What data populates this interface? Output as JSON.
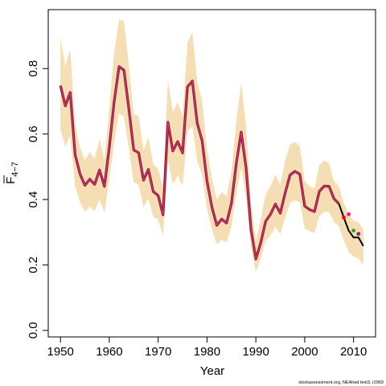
{
  "chart_data": {
    "type": "line",
    "xlabel": "Year",
    "ylabel_main": "F",
    "ylabel_sub": "4−7",
    "xlim": [
      1947.5,
      2014.5
    ],
    "ylim": [
      -0.02,
      0.98
    ],
    "x_ticks": [
      1950,
      1960,
      1970,
      1980,
      1990,
      2000,
      2010
    ],
    "y_ticks": [
      0.0,
      0.2,
      0.4,
      0.6,
      0.8
    ],
    "x_tick_labels": [
      "1950",
      "1960",
      "1970",
      "1980",
      "1990",
      "2000",
      "2010"
    ],
    "y_tick_labels": [
      "0.0",
      "0.2",
      "0.4",
      "0.6",
      "0.8"
    ],
    "grid": false,
    "footnote": "stockassessment.org, NEAhad test3, r2969",
    "colors": {
      "band": "#f5deb3",
      "main_line": "#8b1a3a",
      "main_line_inner": "#e8407a",
      "forecast_line": "#000000",
      "retro_points": [
        "#ff0000",
        "#ff1493",
        "#2ca02c",
        "#7b2a8a"
      ]
    },
    "series": [
      {
        "role": "estimate",
        "x": [
          1950,
          1951,
          1952,
          1953,
          1954,
          1955,
          1956,
          1957,
          1958,
          1959,
          1960,
          1961,
          1962,
          1963,
          1964,
          1965,
          1966,
          1967,
          1968,
          1969,
          1970,
          1971,
          1972,
          1973,
          1974,
          1975,
          1976,
          1977,
          1978,
          1979,
          1980,
          1981,
          1982,
          1983,
          1984,
          1985,
          1986,
          1987,
          1988,
          1989,
          1990,
          1991,
          1992,
          1993,
          1994,
          1995,
          1996,
          1997,
          1998,
          1999,
          2000,
          2001,
          2002,
          2003,
          2004,
          2005,
          2006,
          2007
        ],
        "y": [
          0.748,
          0.686,
          0.727,
          0.537,
          0.478,
          0.443,
          0.462,
          0.446,
          0.49,
          0.44,
          0.56,
          0.7,
          0.806,
          0.795,
          0.677,
          0.551,
          0.543,
          0.459,
          0.492,
          0.424,
          0.412,
          0.353,
          0.636,
          0.548,
          0.577,
          0.542,
          0.744,
          0.762,
          0.633,
          0.579,
          0.456,
          0.377,
          0.321,
          0.34,
          0.328,
          0.388,
          0.511,
          0.606,
          0.496,
          0.31,
          0.218,
          0.268,
          0.333,
          0.355,
          0.386,
          0.358,
          0.42,
          0.475,
          0.486,
          0.477,
          0.38,
          0.369,
          0.363,
          0.425,
          0.441,
          0.44,
          0.402,
          0.387
        ]
      },
      {
        "role": "forecast",
        "x": [
          2007,
          2008,
          2009,
          2010,
          2011,
          2012
        ],
        "y": [
          0.387,
          0.345,
          0.305,
          0.284,
          0.284,
          0.258
        ]
      }
    ],
    "confidence_band": {
      "x": [
        1950,
        1951,
        1952,
        1953,
        1954,
        1955,
        1956,
        1957,
        1958,
        1959,
        1960,
        1961,
        1962,
        1963,
        1964,
        1965,
        1966,
        1967,
        1968,
        1969,
        1970,
        1971,
        1972,
        1973,
        1974,
        1975,
        1976,
        1977,
        1978,
        1979,
        1980,
        1981,
        1982,
        1983,
        1984,
        1985,
        1986,
        1987,
        1988,
        1989,
        1990,
        1991,
        1992,
        1993,
        1994,
        1995,
        1996,
        1997,
        1998,
        1999,
        2000,
        2001,
        2002,
        2003,
        2004,
        2005,
        2006,
        2007,
        2008,
        2009,
        2010,
        2011,
        2012
      ],
      "upper": [
        0.895,
        0.808,
        0.858,
        0.63,
        0.56,
        0.52,
        0.545,
        0.525,
        0.585,
        0.52,
        0.68,
        0.85,
        0.95,
        0.945,
        0.81,
        0.66,
        0.656,
        0.55,
        0.59,
        0.508,
        0.493,
        0.435,
        0.765,
        0.667,
        0.697,
        0.655,
        0.878,
        0.912,
        0.76,
        0.702,
        0.552,
        0.465,
        0.4,
        0.423,
        0.41,
        0.485,
        0.64,
        0.758,
        0.62,
        0.39,
        0.275,
        0.34,
        0.415,
        0.44,
        0.476,
        0.445,
        0.52,
        0.568,
        0.576,
        0.562,
        0.455,
        0.44,
        0.433,
        0.505,
        0.52,
        0.51,
        0.455,
        0.44,
        0.39,
        0.355,
        0.335,
        0.33,
        0.31
      ],
      "lower": [
        0.612,
        0.563,
        0.594,
        0.44,
        0.392,
        0.363,
        0.378,
        0.365,
        0.4,
        0.36,
        0.46,
        0.576,
        0.663,
        0.652,
        0.556,
        0.452,
        0.445,
        0.377,
        0.403,
        0.348,
        0.338,
        0.29,
        0.52,
        0.448,
        0.473,
        0.443,
        0.608,
        0.624,
        0.518,
        0.474,
        0.373,
        0.309,
        0.263,
        0.278,
        0.268,
        0.318,
        0.418,
        0.496,
        0.406,
        0.254,
        0.178,
        0.22,
        0.273,
        0.291,
        0.317,
        0.294,
        0.344,
        0.39,
        0.398,
        0.391,
        0.312,
        0.303,
        0.298,
        0.349,
        0.362,
        0.362,
        0.331,
        0.318,
        0.275,
        0.24,
        0.225,
        0.22,
        0.2
      ]
    },
    "retro_points": [
      {
        "x": 2008,
        "y": 0.345
      },
      {
        "x": 2009,
        "y": 0.355
      },
      {
        "x": 2010,
        "y": 0.305
      },
      {
        "x": 2011,
        "y": 0.295
      }
    ]
  }
}
